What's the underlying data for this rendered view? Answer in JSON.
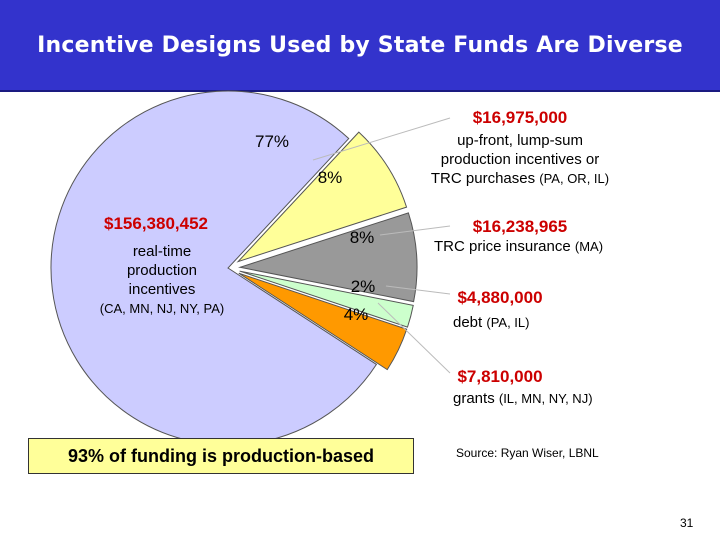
{
  "title": "Incentive Designs Used by State Funds Are Diverse",
  "chart_data": {
    "type": "pie",
    "title": "Incentive Designs Used by State Funds Are Diverse",
    "slices": [
      {
        "percent_label": "77%",
        "value": 77,
        "color": "#ccccff",
        "amount": "$156,380,452",
        "description_lines": [
          "real-time",
          "production",
          "incentives"
        ],
        "detail": "(CA, MN, NJ, NY, PA)"
      },
      {
        "percent_label": "8%",
        "value": 8,
        "color": "#ffff99",
        "amount": "$16,975,000",
        "description_lines": [
          "up-front, lump-sum",
          "production incentives or",
          "TRC purchases"
        ],
        "detail": "(PA, OR, IL)"
      },
      {
        "percent_label": "8%",
        "value": 8,
        "color": "#999999",
        "amount": "$16,238,965",
        "description_lines": [
          "TRC price insurance"
        ],
        "detail": "(MA)"
      },
      {
        "percent_label": "2%",
        "value": 2,
        "color": "#ccffcc",
        "amount": "$4,880,000",
        "description_lines": [
          "debt"
        ],
        "detail": "(PA, IL)"
      },
      {
        "percent_label": "4%",
        "value": 4,
        "color": "#ff9900",
        "amount": "$7,810,000",
        "description_lines": [
          "grants"
        ],
        "detail": "(IL, MN, NY, NJ)"
      }
    ]
  },
  "note": "93% of funding is production-based",
  "source": "Source: Ryan Wiser, LBNL",
  "page_number": "31"
}
